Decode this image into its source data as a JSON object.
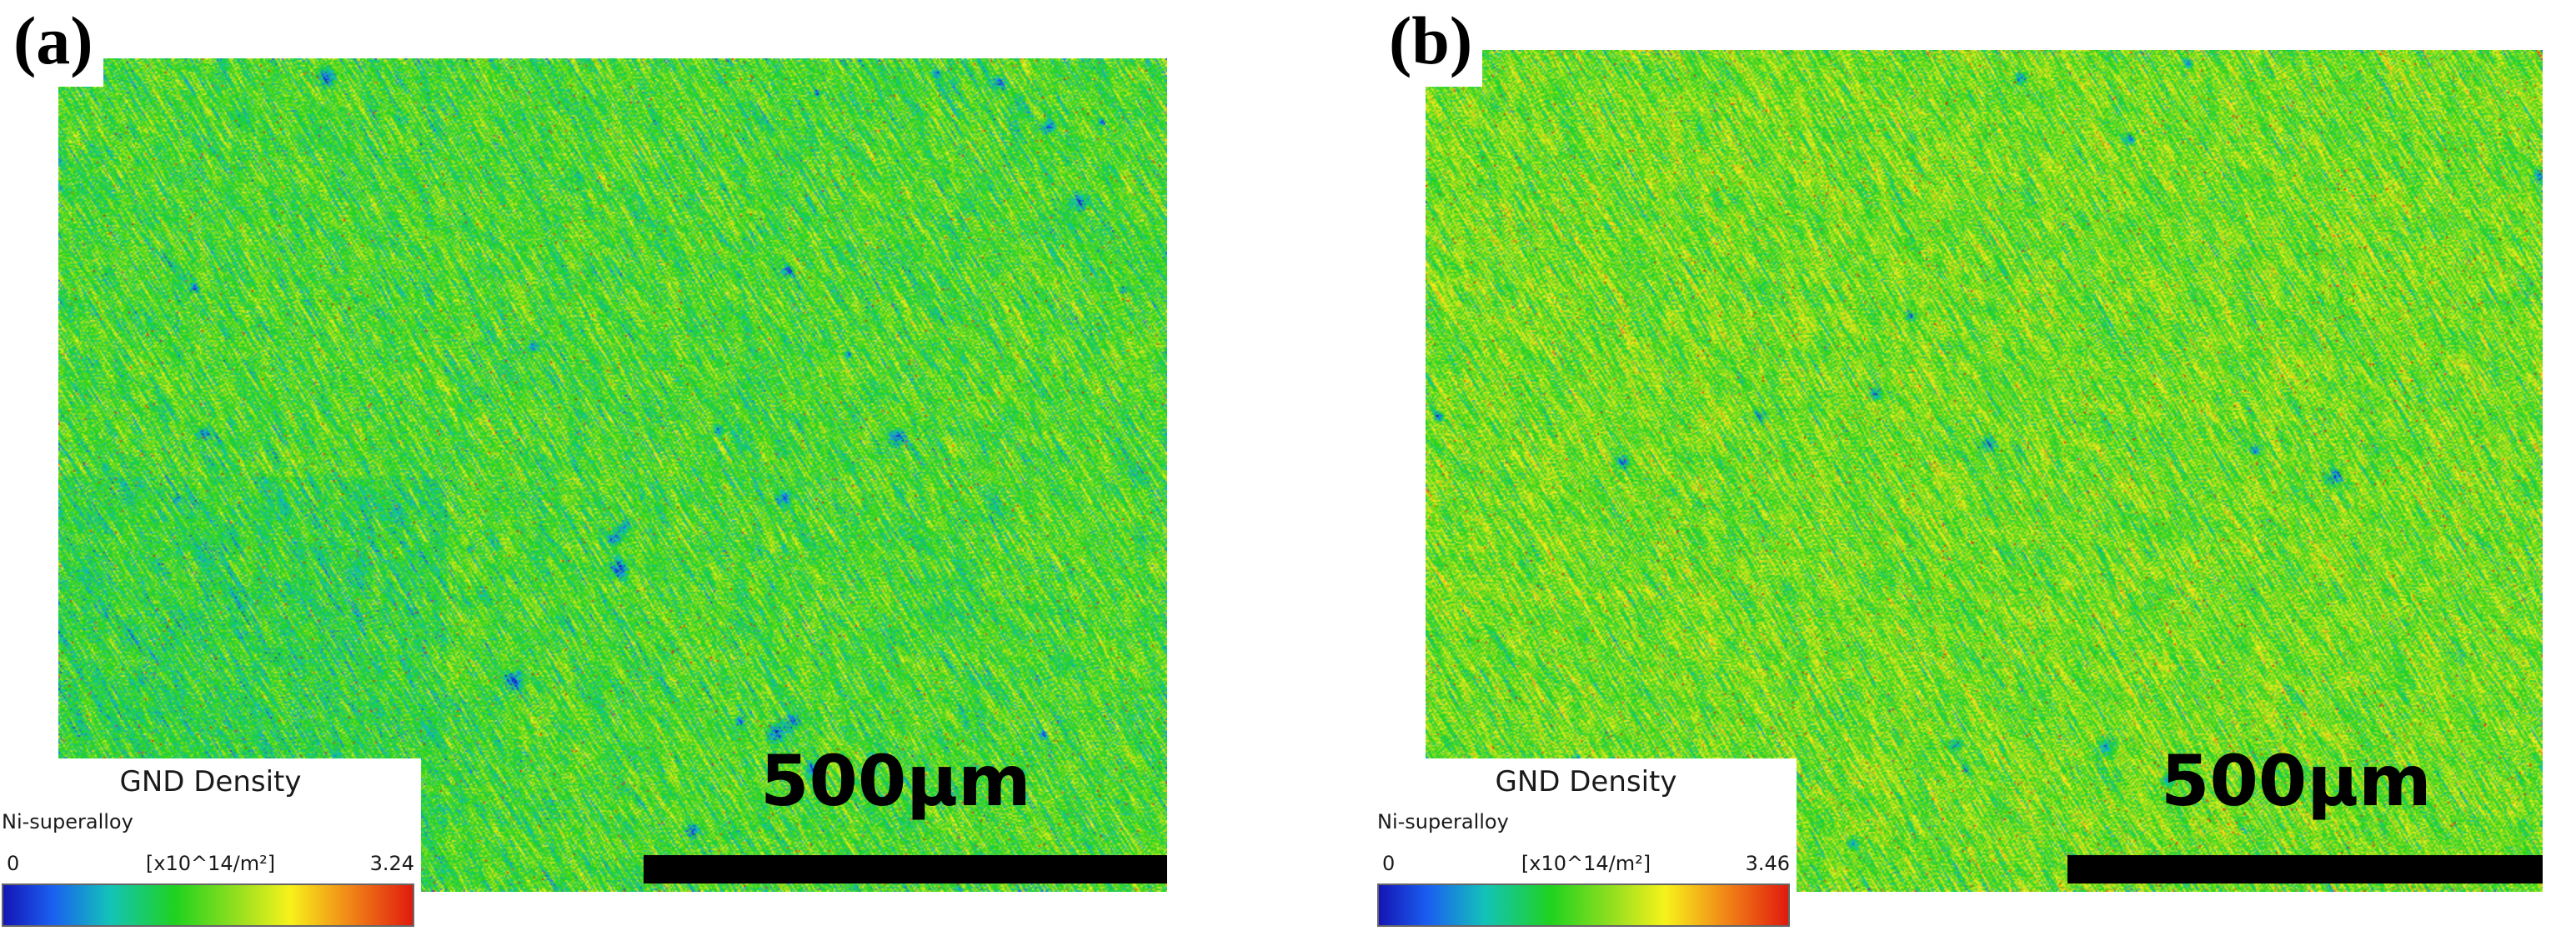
{
  "figure": {
    "panels": [
      {
        "label": "(a)",
        "legend": {
          "title": "GND Density",
          "phase": "Ni-superalloy",
          "min": "0",
          "unit": "[x10^14/m²]",
          "max": "3.24"
        },
        "scale_bar": "500μm"
      },
      {
        "label": "(b)",
        "legend": {
          "title": "GND Density",
          "phase": "Ni-superalloy",
          "min": "0",
          "unit": "[x10^14/m²]",
          "max": "3.46"
        },
        "scale_bar": "500μm"
      }
    ]
  },
  "colors": {
    "blue": "#1515b5",
    "green": "#4cc93a",
    "yellow": "#f7f21b",
    "red": "#e01a0e"
  }
}
